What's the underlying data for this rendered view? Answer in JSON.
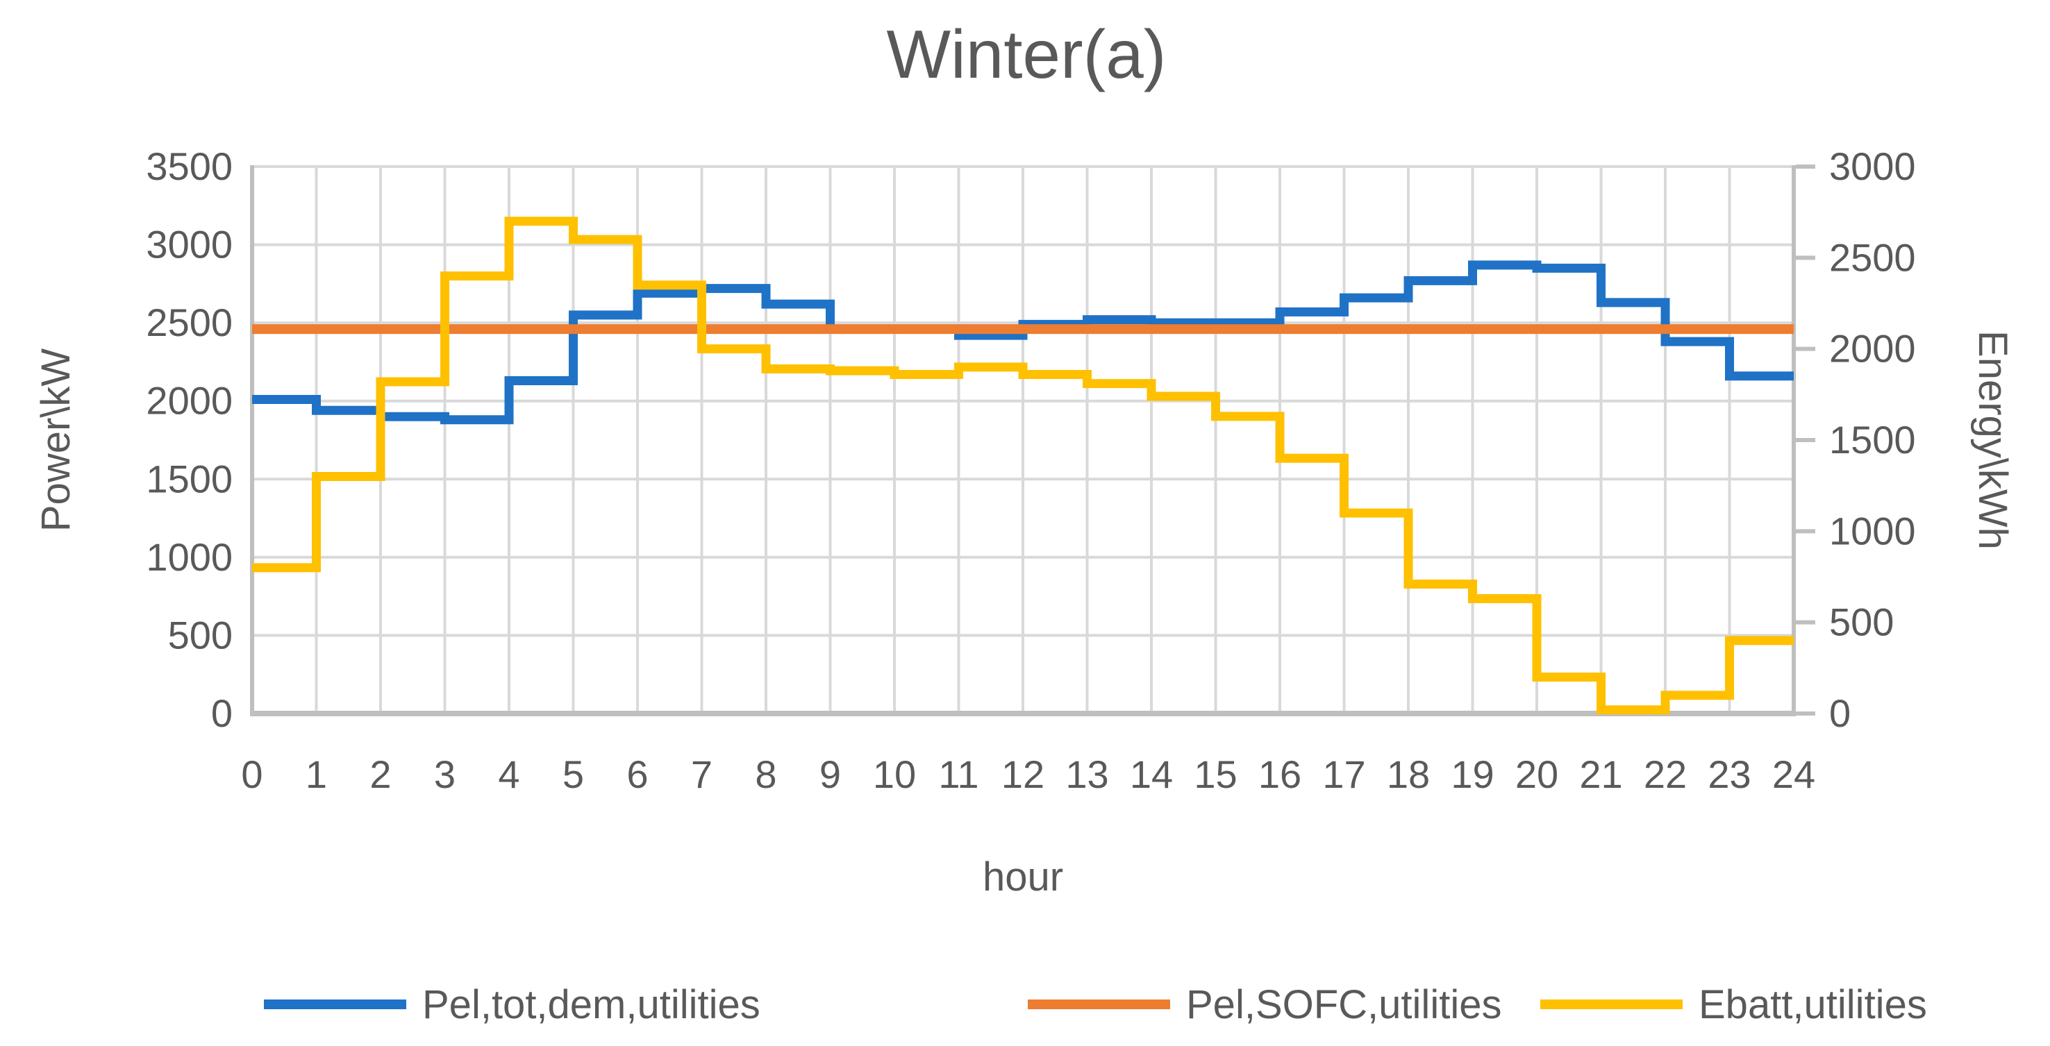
{
  "chart_data": {
    "type": "line",
    "subtype": "step",
    "title": "Winter(a)",
    "xlabel": "hour",
    "ylabel_left": "Power\\kW",
    "ylabel_right": "Energy\\kWh",
    "x_range": [
      0,
      24
    ],
    "x_ticks": [
      0,
      1,
      2,
      3,
      4,
      5,
      6,
      7,
      8,
      9,
      10,
      11,
      12,
      13,
      14,
      15,
      16,
      17,
      18,
      19,
      20,
      21,
      22,
      23,
      24
    ],
    "y_left": {
      "label": "Power\\kW",
      "min": 0,
      "max": 3500,
      "ticks": [
        3500,
        3000,
        2500,
        2000,
        1500,
        1000,
        500,
        0
      ]
    },
    "y_right": {
      "label": "Energy\\kWh",
      "min": 0,
      "max": 3000,
      "ticks": [
        3000,
        2500,
        2000,
        1500,
        1000,
        500,
        0
      ]
    },
    "grid": true,
    "legend_position": "bottom",
    "series": [
      {
        "name": "Pel,tot,dem,utilities",
        "axis": "left",
        "type": "step",
        "color": "#1F72C6",
        "values": [
          2010,
          1940,
          1900,
          1880,
          2130,
          2550,
          2690,
          2720,
          2620,
          2460,
          2460,
          2420,
          2490,
          2520,
          2500,
          2500,
          2570,
          2660,
          2770,
          2870,
          2850,
          2630,
          2380,
          2160
        ]
      },
      {
        "name": "Pel,SOFC,utilities",
        "axis": "left",
        "type": "constant",
        "color": "#ED7D31",
        "value": 2460
      },
      {
        "name": "Ebatt,utilities",
        "axis": "right",
        "type": "step",
        "color": "#FFC000",
        "values": [
          800,
          1300,
          1820,
          2400,
          2700,
          2600,
          2350,
          2000,
          1890,
          1880,
          1860,
          1900,
          1860,
          1810,
          1740,
          1630,
          1400,
          1100,
          710,
          630,
          200,
          20,
          100,
          400
        ]
      }
    ],
    "colors": {
      "gridline": "#D9D9D9",
      "axis_line": "#BFBFBF",
      "text": "#595959",
      "background": "#FFFFFF"
    }
  }
}
